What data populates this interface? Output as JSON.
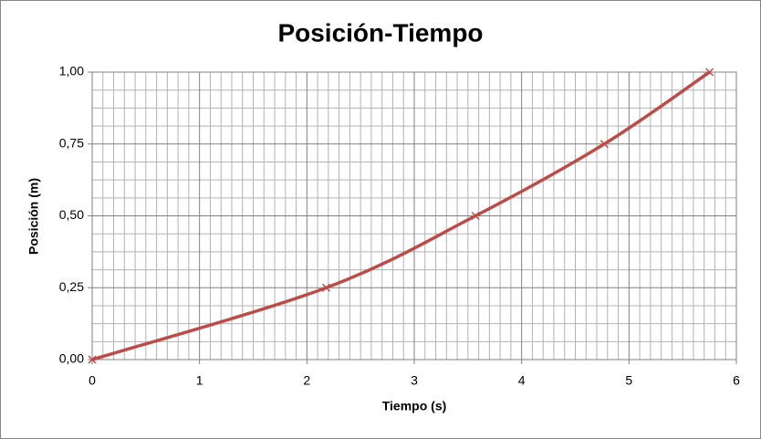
{
  "chart_data": {
    "type": "scatter_smooth",
    "title": "Posición-Tiempo",
    "x_label": "Tiempo (s)",
    "y_label": "Posición (m)",
    "series": [
      {
        "color": "#be4b48",
        "x": [
          0,
          2.18,
          3.57,
          4.77,
          5.75
        ],
        "values": [
          0,
          0.25,
          0.5,
          0.75,
          1.0
        ]
      }
    ],
    "xlim": [
      0,
      6
    ],
    "xticks": [
      0,
      1,
      2,
      3,
      4,
      5,
      6
    ],
    "ylim": [
      0,
      1
    ],
    "yticks": [
      {
        "value": 0,
        "label": "0,00"
      },
      {
        "value": 0.25,
        "label": "0,25"
      },
      {
        "value": 0.5,
        "label": "0,50"
      },
      {
        "value": 0.75,
        "label": "0,75"
      },
      {
        "value": 1,
        "label": "1,00"
      }
    ],
    "grid": true,
    "minor_grid": {
      "x": 10,
      "y": 4
    }
  }
}
